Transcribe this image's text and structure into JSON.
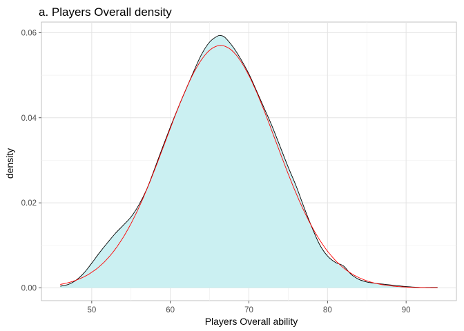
{
  "chart_data": {
    "type": "area",
    "title": "a. Players Overall density",
    "xlabel": "Players Overall ability",
    "ylabel": "density",
    "xlim": [
      43.6,
      96.4
    ],
    "ylim": [
      -0.003,
      0.0625
    ],
    "x_ticks": [
      50,
      60,
      70,
      80,
      90
    ],
    "x_tick_labels": [
      "50",
      "60",
      "70",
      "80",
      "90"
    ],
    "y_ticks": [
      0.0,
      0.02,
      0.04,
      0.06
    ],
    "y_tick_labels": [
      "0.00",
      "0.02",
      "0.04",
      "0.06"
    ],
    "grid": true,
    "legend": "none",
    "series": [
      {
        "kind": "density",
        "fill": "#cbf0f2",
        "stroke": "#000000",
        "x": [
          46,
          47,
          48,
          49,
          50,
          51,
          52,
          53,
          54,
          55,
          56,
          57,
          58,
          59,
          60,
          61,
          62,
          63,
          64,
          65,
          66,
          66.5,
          67,
          68,
          69,
          70,
          71,
          72,
          73,
          74,
          75,
          76,
          77,
          78,
          79,
          80,
          81,
          82,
          83,
          84,
          85,
          86,
          87,
          88,
          89,
          90,
          91,
          92,
          93,
          94
        ],
        "y": [
          0.0004,
          0.0008,
          0.0018,
          0.0035,
          0.0058,
          0.0083,
          0.0106,
          0.0128,
          0.0147,
          0.0167,
          0.0195,
          0.0232,
          0.028,
          0.033,
          0.0378,
          0.0424,
          0.0467,
          0.051,
          0.055,
          0.0578,
          0.0592,
          0.0593,
          0.0588,
          0.0566,
          0.0537,
          0.0503,
          0.0462,
          0.042,
          0.0378,
          0.0331,
          0.0284,
          0.024,
          0.019,
          0.0143,
          0.0102,
          0.0075,
          0.006,
          0.0052,
          0.0032,
          0.002,
          0.0014,
          0.0011,
          0.0009,
          0.0007,
          0.0005,
          0.0003,
          0.0002,
          0.0001,
          0.0001,
          0.0001
        ]
      },
      {
        "kind": "normal-fit",
        "stroke": "#ff0000",
        "mean": 66.4,
        "sd": 7.0,
        "x_range": [
          46,
          94
        ]
      }
    ]
  }
}
